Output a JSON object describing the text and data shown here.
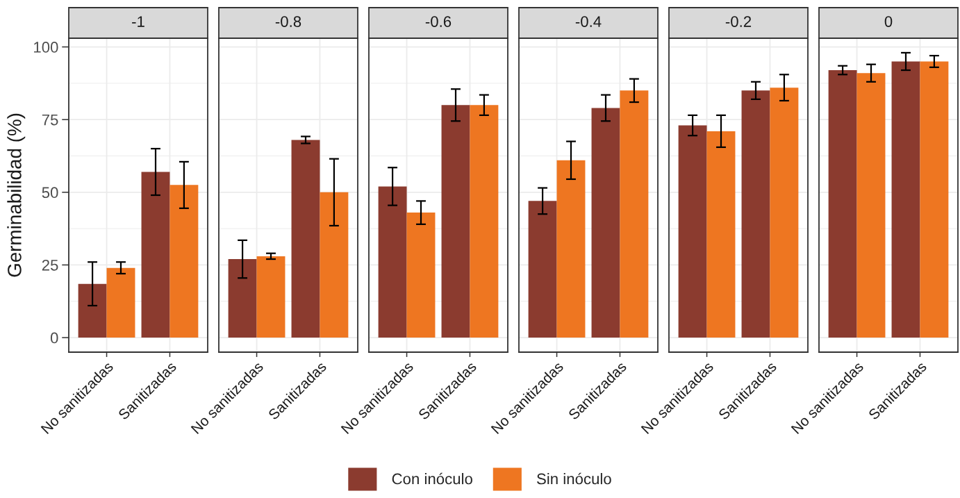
{
  "chart_data": [
    {
      "type": "bar",
      "title": "-1",
      "ylabel": "Germinabilidad (%)",
      "categories": [
        "No sanitizadas",
        "Sanitizadas"
      ],
      "series": [
        {
          "name": "Con inóculo",
          "color": "#8b3b2f",
          "values": [
            18.5,
            57
          ],
          "errors": [
            7.5,
            8
          ]
        },
        {
          "name": "Sin inóculo",
          "color": "#ee7621",
          "values": [
            24,
            52.5
          ],
          "errors": [
            2,
            8
          ]
        }
      ],
      "ylim": [
        -5,
        103
      ],
      "yticks": [
        0,
        25,
        50,
        75,
        100
      ],
      "grid": true,
      "legend": "bottom"
    },
    {
      "type": "bar",
      "title": "-0.8",
      "categories": [
        "No sanitizadas",
        "Sanitizadas"
      ],
      "series": [
        {
          "color": "#8b3b2f",
          "values": [
            27,
            68
          ],
          "errors": [
            6.5,
            1.2
          ]
        },
        {
          "color": "#ee7621",
          "values": [
            28,
            50
          ],
          "errors": [
            1,
            11.5
          ]
        }
      ],
      "ylim": [
        -5,
        103
      ],
      "yticks": [
        0,
        25,
        50,
        75,
        100
      ],
      "grid": true,
      "tick_labels": "x"
    },
    {
      "type": "bar",
      "title": "-0.6",
      "categories": [
        "No sanitizadas",
        "Sanitizadas"
      ],
      "series": [
        {
          "color": "#8b3b2f",
          "values": [
            52,
            80
          ],
          "errors": [
            6.5,
            5.5
          ]
        },
        {
          "color": "#ee7621",
          "values": [
            43,
            80
          ],
          "errors": [
            4,
            3.5
          ]
        }
      ],
      "ylim": [
        -5,
        103
      ],
      "yticks": [
        0,
        25,
        50,
        75,
        100
      ],
      "grid": true,
      "tick_labels": "x"
    },
    {
      "type": "bar",
      "title": "-0.4",
      "categories": [
        "No sanitizadas",
        "Sanitizadas"
      ],
      "series": [
        {
          "color": "#8b3b2f",
          "values": [
            47,
            79
          ],
          "errors": [
            4.5,
            4.5
          ]
        },
        {
          "color": "#ee7621",
          "values": [
            61,
            85
          ],
          "errors": [
            6.5,
            4
          ]
        }
      ],
      "ylim": [
        -5,
        103
      ],
      "yticks": [
        0,
        25,
        50,
        75,
        100
      ],
      "grid": true,
      "tick_labels": "x"
    },
    {
      "type": "bar",
      "title": "-0.2",
      "categories": [
        "No sanitizadas",
        "Sanitizadas"
      ],
      "series": [
        {
          "color": "#8b3b2f",
          "values": [
            73,
            85
          ],
          "errors": [
            3.5,
            3
          ]
        },
        {
          "color": "#ee7621",
          "values": [
            71,
            86
          ],
          "errors": [
            5.5,
            4.5
          ]
        }
      ],
      "ylim": [
        -5,
        103
      ],
      "yticks": [
        0,
        25,
        50,
        75,
        100
      ],
      "grid": true,
      "tick_labels": "x"
    },
    {
      "type": "bar",
      "title": "0",
      "categories": [
        "No sanitizadas",
        "Sanitizadas"
      ],
      "series": [
        {
          "color": "#8b3b2f",
          "values": [
            92,
            95
          ],
          "errors": [
            1.5,
            3
          ]
        },
        {
          "color": "#ee7621",
          "values": [
            91,
            95
          ],
          "errors": [
            3,
            2
          ]
        }
      ],
      "ylim": [
        -5,
        103
      ],
      "yticks": [
        0,
        25,
        50,
        75,
        100
      ],
      "grid": true,
      "tick_labels": "x"
    }
  ]
}
